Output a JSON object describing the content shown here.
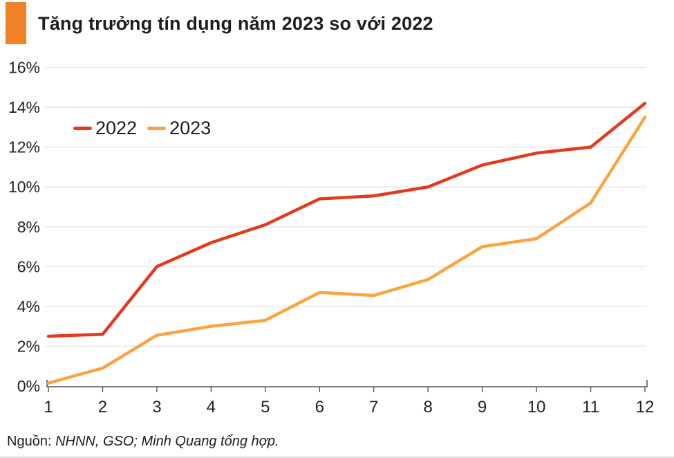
{
  "header": {
    "title": "Tăng trưởng tín dụng năm 2023 so với 2022",
    "accent_color": "#ef8227"
  },
  "chart_data": {
    "type": "line",
    "title": "Tăng trưởng tín dụng năm 2023 so với 2022",
    "xlabel": "",
    "ylabel": "",
    "x": [
      1,
      2,
      3,
      4,
      5,
      6,
      7,
      8,
      9,
      10,
      11,
      12
    ],
    "x_tick_labels": [
      "1",
      "2",
      "3",
      "4",
      "5",
      "6",
      "7",
      "8",
      "9",
      "10",
      "11",
      "12"
    ],
    "series": [
      {
        "name": "2022",
        "color": "#e23a1c",
        "values": [
          2.5,
          2.6,
          6.0,
          7.2,
          8.1,
          9.4,
          9.55,
          10.0,
          11.1,
          11.7,
          12.0,
          14.2
        ]
      },
      {
        "name": "2023",
        "color": "#f9a43f",
        "values": [
          0.15,
          0.9,
          2.55,
          3.0,
          3.3,
          4.7,
          4.55,
          5.35,
          7.0,
          7.4,
          9.2,
          13.5
        ]
      }
    ],
    "ylim": [
      0,
      16
    ],
    "ytick_step": 2,
    "ytick_labels": [
      "0%",
      "2%",
      "4%",
      "6%",
      "8%",
      "10%",
      "12%",
      "14%",
      "16%"
    ],
    "unit": "%",
    "grid": "horizontal",
    "grid_color": "#ebebeb",
    "axis_color": "#55565a",
    "tick_label_color": "#231f20",
    "legend_position": "top-left-inside"
  },
  "footer": {
    "source_prefix": "Nguồn: ",
    "source_text": "NHNN, GSO; Minh Quang tổng hợp."
  }
}
